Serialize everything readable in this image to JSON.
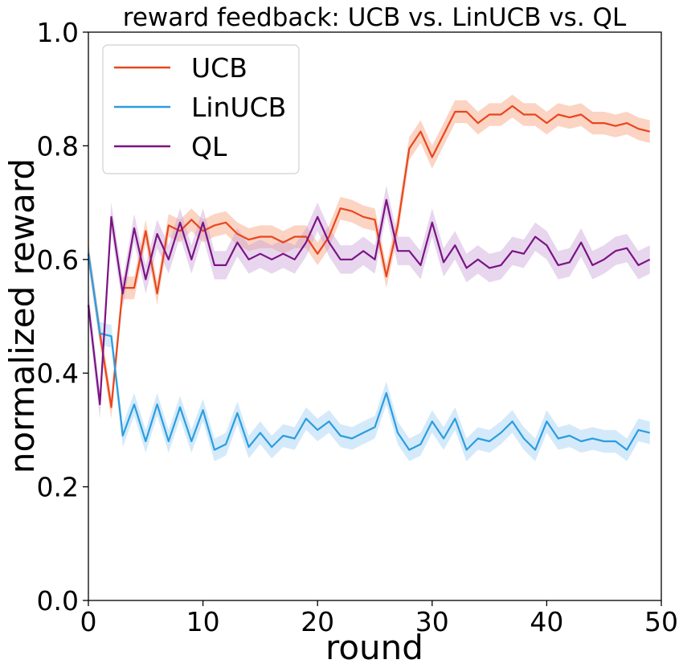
{
  "chart_data": {
    "type": "line",
    "title": "reward feedback: UCB vs. LinUCB vs. QL",
    "xlabel": "round",
    "ylabel": "normalized reward",
    "xlim": [
      0,
      50
    ],
    "ylim": [
      0.0,
      1.0
    ],
    "xticks": [
      "0",
      "10",
      "20",
      "30",
      "40",
      "50"
    ],
    "yticks": [
      "0.0",
      "0.2",
      "0.4",
      "0.6",
      "0.8",
      "1.0"
    ],
    "grid": false,
    "legend_position": "top-left",
    "x": [
      0,
      1,
      2,
      3,
      4,
      5,
      6,
      7,
      8,
      9,
      10,
      11,
      12,
      13,
      14,
      15,
      16,
      17,
      18,
      19,
      20,
      21,
      22,
      23,
      24,
      25,
      26,
      27,
      28,
      29,
      30,
      31,
      32,
      33,
      34,
      35,
      36,
      37,
      38,
      39,
      40,
      41,
      42,
      43,
      44,
      45,
      46,
      47,
      48,
      49
    ],
    "series": [
      {
        "name": "UCB",
        "color": "#e8461c",
        "band_color": "#f7a07d",
        "band_halfwidth": 0.02,
        "values": [
          0.61,
          0.47,
          0.34,
          0.55,
          0.55,
          0.65,
          0.54,
          0.66,
          0.65,
          0.67,
          0.65,
          0.66,
          0.665,
          0.645,
          0.635,
          0.64,
          0.64,
          0.63,
          0.64,
          0.64,
          0.61,
          0.64,
          0.69,
          0.685,
          0.675,
          0.67,
          0.57,
          0.66,
          0.795,
          0.825,
          0.78,
          0.82,
          0.86,
          0.86,
          0.84,
          0.855,
          0.855,
          0.87,
          0.855,
          0.855,
          0.84,
          0.855,
          0.85,
          0.855,
          0.84,
          0.84,
          0.835,
          0.84,
          0.83,
          0.825
        ]
      },
      {
        "name": "LinUCB",
        "color": "#2a9de0",
        "band_color": "#9fd0f5",
        "band_halfwidth": 0.02,
        "values": [
          0.61,
          0.47,
          0.465,
          0.29,
          0.345,
          0.28,
          0.345,
          0.28,
          0.34,
          0.28,
          0.335,
          0.265,
          0.275,
          0.33,
          0.27,
          0.295,
          0.27,
          0.29,
          0.285,
          0.32,
          0.3,
          0.315,
          0.29,
          0.285,
          0.295,
          0.305,
          0.365,
          0.295,
          0.265,
          0.275,
          0.315,
          0.285,
          0.32,
          0.265,
          0.285,
          0.28,
          0.295,
          0.315,
          0.285,
          0.265,
          0.315,
          0.285,
          0.29,
          0.28,
          0.285,
          0.28,
          0.28,
          0.265,
          0.3,
          0.295
        ]
      },
      {
        "name": "QL",
        "color": "#7b1385",
        "band_color": "#c9a3d6",
        "band_halfwidth": 0.025,
        "values": [
          0.52,
          0.345,
          0.675,
          0.54,
          0.655,
          0.565,
          0.645,
          0.6,
          0.665,
          0.6,
          0.665,
          0.59,
          0.59,
          0.63,
          0.6,
          0.61,
          0.6,
          0.61,
          0.6,
          0.63,
          0.675,
          0.63,
          0.6,
          0.6,
          0.615,
          0.6,
          0.705,
          0.615,
          0.615,
          0.59,
          0.665,
          0.595,
          0.625,
          0.585,
          0.6,
          0.585,
          0.59,
          0.615,
          0.61,
          0.64,
          0.625,
          0.59,
          0.595,
          0.63,
          0.59,
          0.6,
          0.615,
          0.62,
          0.59,
          0.6
        ]
      }
    ]
  }
}
